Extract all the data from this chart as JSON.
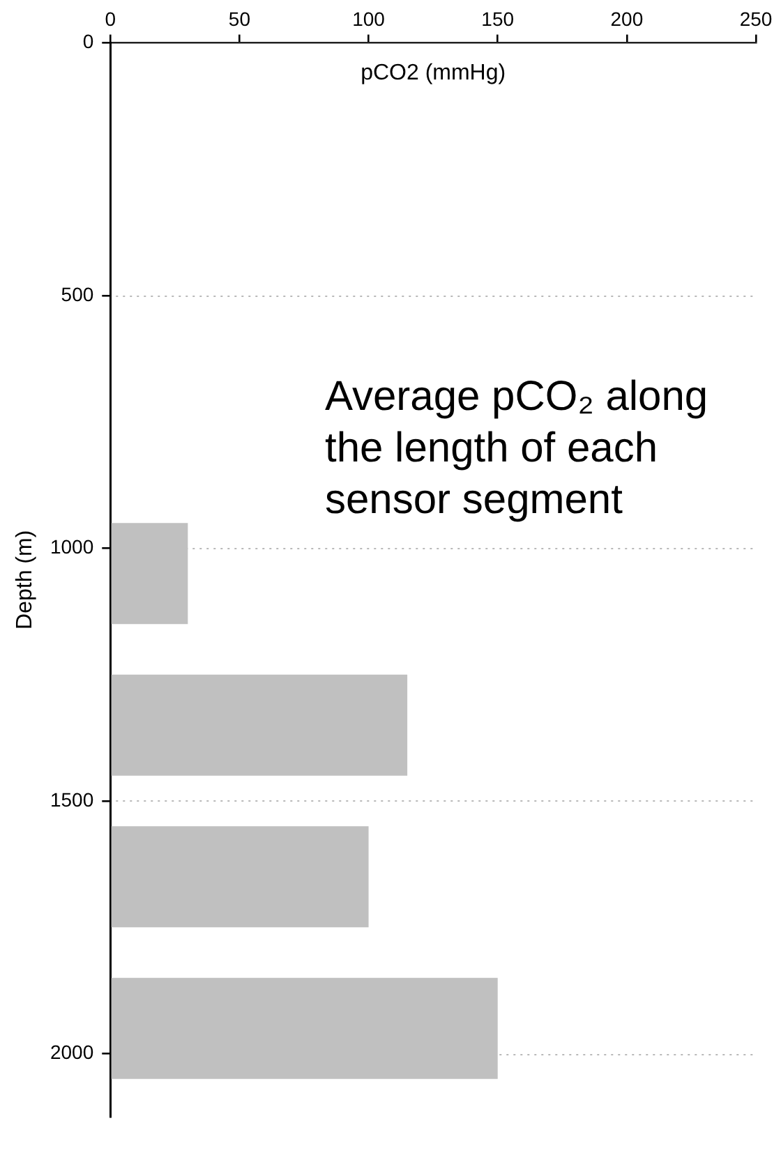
{
  "chart_data": {
    "type": "histogram",
    "orientation": "horizontal",
    "xlabel": "pCO2 (mmHg)",
    "ylabel": "Depth (m)",
    "bins": [
      950,
      1150,
      1250,
      1450,
      1550,
      1750,
      1850,
      2050
    ],
    "values": [
      30,
      null,
      115,
      null,
      100,
      null,
      150
    ],
    "color": "#c0c0c0",
    "xlim": [
      0,
      250
    ],
    "xticks": [
      0,
      50,
      100,
      150,
      200,
      250
    ],
    "ylim": [
      2125,
      0
    ],
    "yticks": [
      0,
      500,
      1000,
      1500,
      2000
    ],
    "grid": "y",
    "annotations": [
      "Average pCO₂ along the length of each sensor segment"
    ]
  }
}
